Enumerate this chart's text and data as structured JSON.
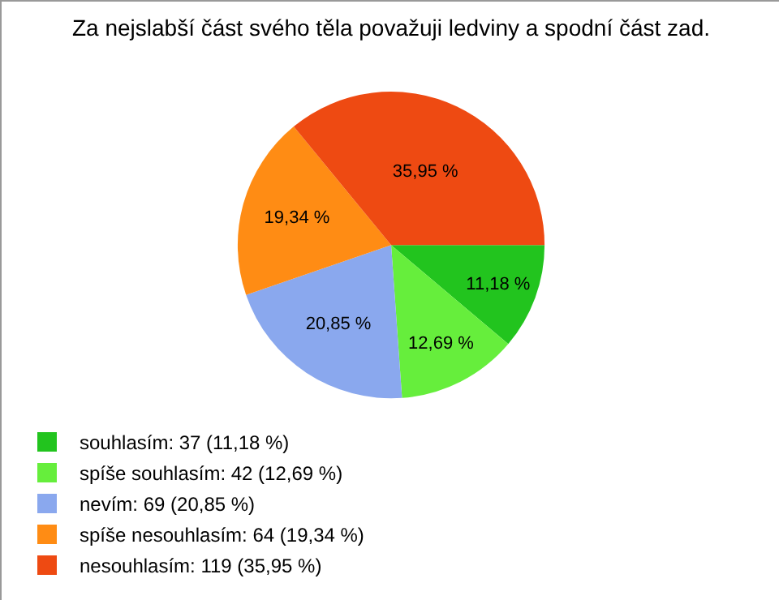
{
  "chart_data": {
    "type": "pie",
    "title": "Za nejslabší část svého těla považuji ledviny a spodní část zad.",
    "categories": [
      "souhlasím: 37 (11,18 %)",
      "spíše souhlasím: 42 (12,69 %)",
      "nevím: 69 (20,85 %)",
      "spíše nesouhlasím: 64 (19,34 %)",
      "nesouhlasím: 119 (35,95 %)"
    ],
    "values": [
      11.18,
      12.69,
      20.85,
      19.34,
      35.95
    ],
    "value_labels": [
      "11,18 %",
      "12,69 %",
      "20,85 %",
      "19,34 %",
      "35,95 %"
    ],
    "colors": [
      "#22c41e",
      "#66ee3c",
      "#8aa8ee",
      "#ff8c14",
      "#ee4a12"
    ],
    "legend": "bottom left"
  }
}
